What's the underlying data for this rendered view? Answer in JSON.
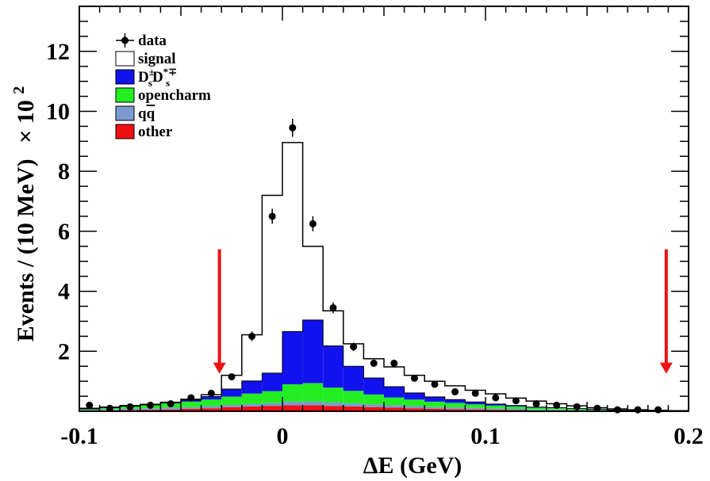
{
  "chart_data": {
    "type": "bar",
    "stacked": true,
    "title": "",
    "xlabel": "ΔE (GeV)",
    "ylabel": "Events / (10 MeV)",
    "ylabel_scale": "× 10",
    "ylabel_scale_exp": "2",
    "xlim": [
      -0.1,
      0.2
    ],
    "ylim": [
      0,
      13.5
    ],
    "x_ticks": [
      -0.1,
      0,
      0.1,
      0.2
    ],
    "x_tick_labels": [
      "-0.1",
      "0",
      "0.1",
      "0.2"
    ],
    "y_ticks": [
      2,
      4,
      6,
      8,
      10,
      12
    ],
    "y_tick_labels": [
      "2",
      "4",
      "6",
      "8",
      "10",
      "12"
    ],
    "grid": false,
    "legend_position": "top-left",
    "bin_edges": [
      -0.1,
      -0.09,
      -0.08,
      -0.07,
      -0.06,
      -0.05,
      -0.04,
      -0.03,
      -0.02,
      -0.01,
      0,
      0.01,
      0.02,
      0.03,
      0.04,
      0.05,
      0.06,
      0.07,
      0.08,
      0.09,
      0.1,
      0.11,
      0.12,
      0.13,
      0.14,
      0.15,
      0.16,
      0.17,
      0.18,
      0.19,
      0.2
    ],
    "stack_series": [
      {
        "name": "other",
        "color": "#ee1111",
        "values": [
          0.02,
          0.03,
          0.04,
          0.05,
          0.06,
          0.08,
          0.1,
          0.14,
          0.16,
          0.18,
          0.2,
          0.2,
          0.18,
          0.16,
          0.14,
          0.12,
          0.1,
          0.08,
          0.07,
          0.06,
          0.05,
          0.04,
          0.03,
          0.03,
          0.02,
          0.02,
          0.01,
          0.01,
          0.01,
          0.0
        ]
      },
      {
        "name": "q̅q",
        "color": "#7b9ad2",
        "values": [
          0.03,
          0.04,
          0.05,
          0.05,
          0.06,
          0.06,
          0.07,
          0.07,
          0.08,
          0.09,
          0.12,
          0.12,
          0.11,
          0.1,
          0.09,
          0.08,
          0.07,
          0.06,
          0.06,
          0.05,
          0.04,
          0.04,
          0.03,
          0.03,
          0.02,
          0.02,
          0.01,
          0.01,
          0.01,
          0.0
        ]
      },
      {
        "name": "opencharm",
        "color": "#22ee22",
        "values": [
          0.03,
          0.05,
          0.08,
          0.11,
          0.14,
          0.18,
          0.22,
          0.28,
          0.35,
          0.4,
          0.58,
          0.62,
          0.5,
          0.42,
          0.33,
          0.26,
          0.22,
          0.18,
          0.15,
          0.12,
          0.1,
          0.08,
          0.06,
          0.05,
          0.04,
          0.03,
          0.02,
          0.01,
          0.01,
          0.0
        ]
      },
      {
        "name": "D_s^±D_s^*∓",
        "color": "#1212ee",
        "values": [
          0.0,
          0.0,
          0.0,
          0.0,
          0.02,
          0.05,
          0.1,
          0.25,
          0.42,
          0.6,
          1.76,
          2.1,
          1.39,
          0.82,
          0.55,
          0.36,
          0.22,
          0.16,
          0.11,
          0.08,
          0.05,
          0.03,
          0.02,
          0.01,
          0.01,
          0.0,
          0.0,
          0.0,
          0.0,
          0.0
        ]
      }
    ],
    "signal": {
      "name": "signal",
      "values": [
        0.1,
        0.14,
        0.19,
        0.23,
        0.3,
        0.4,
        0.55,
        1.2,
        2.55,
        7.2,
        8.96,
        5.5,
        3.35,
        2.25,
        1.75,
        1.48,
        1.2,
        1.0,
        0.85,
        0.7,
        0.58,
        0.44,
        0.34,
        0.25,
        0.18,
        0.12,
        0.08,
        0.05,
        0.03,
        0.02
      ]
    },
    "data_points": {
      "name": "data",
      "x": [
        -0.095,
        -0.085,
        -0.075,
        -0.065,
        -0.055,
        -0.045,
        -0.035,
        -0.025,
        -0.015,
        -0.005,
        0.005,
        0.015,
        0.025,
        0.035,
        0.045,
        0.055,
        0.065,
        0.075,
        0.085,
        0.095,
        0.105,
        0.115,
        0.125,
        0.135,
        0.145,
        0.155,
        0.165,
        0.175,
        0.185
      ],
      "y": [
        0.2,
        0.1,
        0.15,
        0.2,
        0.25,
        0.45,
        0.6,
        1.15,
        2.5,
        6.5,
        9.45,
        6.25,
        3.45,
        2.15,
        1.6,
        1.6,
        1.1,
        0.9,
        0.65,
        0.6,
        0.45,
        0.35,
        0.25,
        0.2,
        0.15,
        0.1,
        0.05,
        0.05,
        0.05
      ],
      "err": [
        0.05,
        0.04,
        0.04,
        0.05,
        0.06,
        0.07,
        0.08,
        0.1,
        0.16,
        0.25,
        0.3,
        0.25,
        0.18,
        0.14,
        0.12,
        0.12,
        0.1,
        0.09,
        0.08,
        0.08,
        0.07,
        0.06,
        0.05,
        0.04,
        0.04,
        0.03,
        0.02,
        0.02,
        0.02
      ]
    },
    "arrows": [
      {
        "x": -0.031,
        "y_top": 5.4,
        "y_bottom": 1.25,
        "color": "#ee1111"
      },
      {
        "x": 0.189,
        "y_top": 5.4,
        "y_bottom": 1.25,
        "color": "#ee1111"
      }
    ],
    "legend": [
      {
        "label": "data",
        "kind": "marker"
      },
      {
        "label": "signal",
        "kind": "box",
        "color": "#ffffff"
      },
      {
        "label": "D",
        "label_sup1": "±",
        "label_sub1": "s",
        "label_mid": "D",
        "label_sup2": "*∓",
        "label_sub2": "s",
        "kind": "box",
        "color": "#1212ee"
      },
      {
        "label": "opencharm",
        "kind": "box",
        "color": "#22ee22"
      },
      {
        "label": "qq",
        "kind": "box",
        "color": "#7b9ad2",
        "overline_second": true
      },
      {
        "label": "other",
        "kind": "box",
        "color": "#ee1111"
      }
    ]
  }
}
